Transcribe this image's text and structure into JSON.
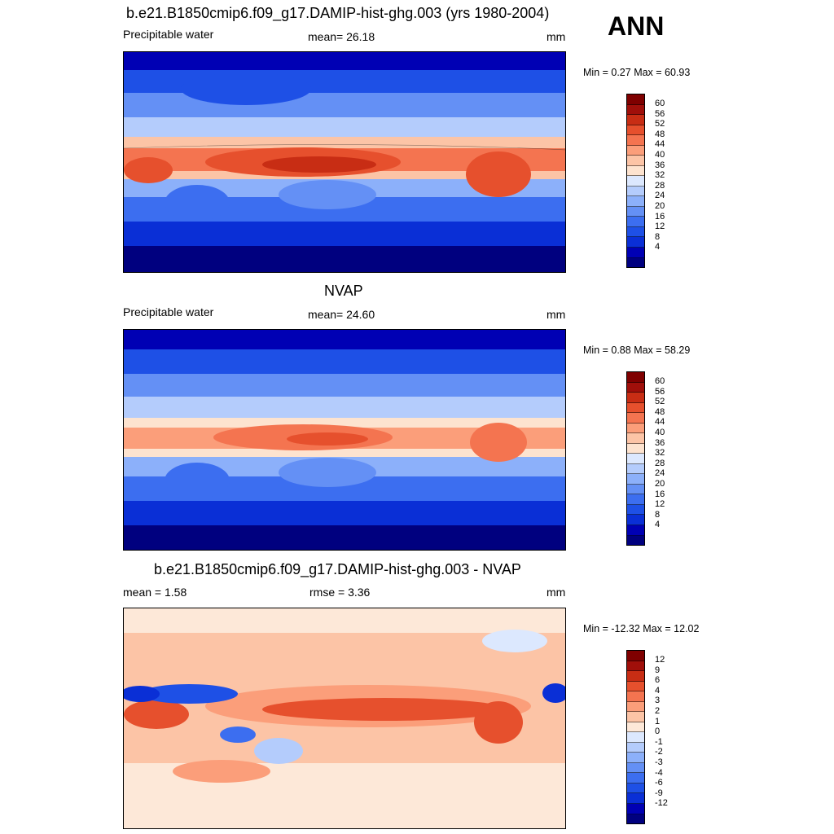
{
  "season": "ANN",
  "panels": [
    {
      "title": "b.e21.B1850cmip6.f09_g17.DAMIP-hist-ghg.003 (yrs 1980-2004)",
      "left_label": "Precipitable water",
      "center_label": "mean=  26.18",
      "units": "mm",
      "minmax": "Min =   0.27 Max =  60.93",
      "colorbar_labels": [
        "60",
        "56",
        "52",
        "48",
        "44",
        "40",
        "36",
        "32",
        "28",
        "24",
        "20",
        "16",
        "12",
        "8",
        "4"
      ]
    },
    {
      "title": "NVAP",
      "left_label": "Precipitable water",
      "center_label": "mean=  24.60",
      "units": "mm",
      "minmax": "Min =   0.88 Max =  58.29",
      "colorbar_labels": [
        "60",
        "56",
        "52",
        "48",
        "44",
        "40",
        "36",
        "32",
        "28",
        "24",
        "20",
        "16",
        "12",
        "8",
        "4"
      ]
    },
    {
      "title": "b.e21.B1850cmip6.f09_g17.DAMIP-hist-ghg.003 - NVAP",
      "left_label": "mean =   1.58",
      "center_label": "rmse =   3.36",
      "units": "mm",
      "minmax": "Min = -12.32 Max =  12.02",
      "colorbar_labels": [
        "12",
        "9",
        "6",
        "4",
        "3",
        "2",
        "1",
        "0",
        "-1",
        "-2",
        "-3",
        "-4",
        "-6",
        "-9",
        "-12"
      ]
    }
  ],
  "colorbar_colors_abs": [
    "#00007f",
    "#0000b4",
    "#0a2fd6",
    "#1e50e6",
    "#3c6ef0",
    "#6490f5",
    "#8cb0fa",
    "#b4ccfc",
    "#dce8fe",
    "#fde3cf",
    "#fcc4a6",
    "#fb9e7a",
    "#f47450",
    "#e6502d",
    "#c82d14",
    "#a00f0a",
    "#7f0000"
  ],
  "colorbar_colors_diff": [
    "#00007f",
    "#0000b4",
    "#0a2fd6",
    "#1e50e6",
    "#3c6ef0",
    "#6490f5",
    "#8cb0fa",
    "#b4ccfc",
    "#dce8fe",
    "#fde8d8",
    "#fcc4a6",
    "#fb9e7a",
    "#f47450",
    "#e6502d",
    "#c82d14",
    "#a00f0a",
    "#7f0000"
  ]
}
